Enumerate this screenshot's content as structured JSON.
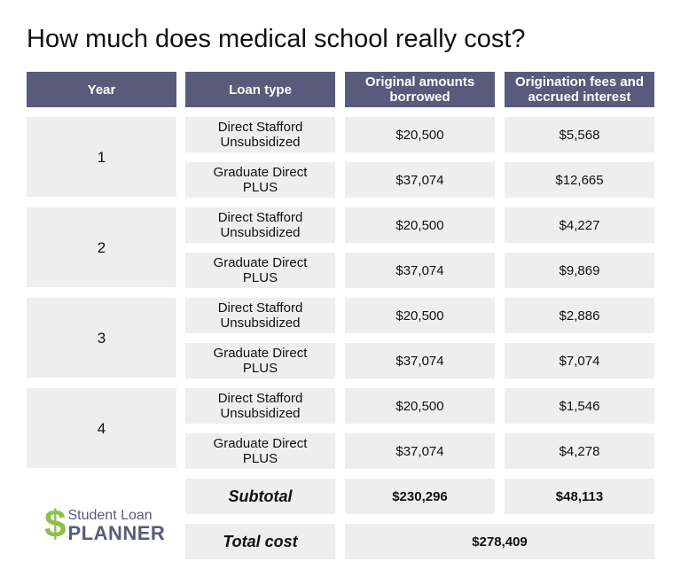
{
  "title": "How much does medical school really cost?",
  "headers": [
    "Year",
    "Loan type",
    "Original amounts borrowed",
    "Origination fees and accrued interest"
  ],
  "years": [
    {
      "year": "1",
      "loans": [
        {
          "type": "Direct Stafford Unsubsidized",
          "borrowed": "$20,500",
          "fees": "$5,568"
        },
        {
          "type": "Graduate Direct PLUS",
          "borrowed": "$37,074",
          "fees": "$12,665"
        }
      ]
    },
    {
      "year": "2",
      "loans": [
        {
          "type": "Direct Stafford Unsubsidized",
          "borrowed": "$20,500",
          "fees": "$4,227"
        },
        {
          "type": "Graduate Direct PLUS",
          "borrowed": "$37,074",
          "fees": "$9,869"
        }
      ]
    },
    {
      "year": "3",
      "loans": [
        {
          "type": "Direct Stafford Unsubsidized",
          "borrowed": "$20,500",
          "fees": "$2,886"
        },
        {
          "type": "Graduate Direct PLUS",
          "borrowed": "$37,074",
          "fees": "$7,074"
        }
      ]
    },
    {
      "year": "4",
      "loans": [
        {
          "type": "Direct Stafford Unsubsidized",
          "borrowed": "$20,500",
          "fees": "$1,546"
        },
        {
          "type": "Graduate Direct PLUS",
          "borrowed": "$37,074",
          "fees": "$4,278"
        }
      ]
    }
  ],
  "subtotal": {
    "label": "Subtotal",
    "borrowed": "$230,296",
    "fees": "$48,113"
  },
  "total": {
    "label": "Total cost",
    "value": "$278,409"
  },
  "logo": {
    "line1": "Student Loan",
    "line2": "PLANNER",
    "symbol": "$"
  },
  "colors": {
    "header": "#5a5a7d",
    "cell": "#eeeeee",
    "logo_green": "#8dc04a"
  }
}
